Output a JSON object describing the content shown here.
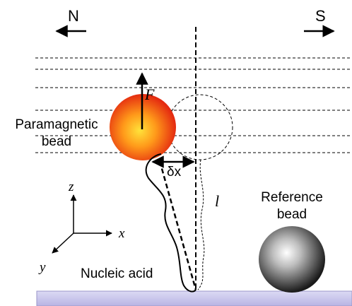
{
  "labels": {
    "north": "N",
    "south": "S",
    "force": "F",
    "paramagnetic_line1": "Paramagnetic",
    "paramagnetic_line2": "bead",
    "delta_x": "δx",
    "length": "l",
    "axis_z": "z",
    "axis_x": "x",
    "axis_y": "y",
    "nucleic_acid": "Nucleic acid",
    "reference_line1": "Reference",
    "reference_line2": "bead"
  },
  "colors": {
    "bead_core": "#ffe23a",
    "bead_mid": "#ff9a1a",
    "bead_edge": "#e42a10",
    "reference_light": "#ffffff",
    "reference_dark": "#1a1a1a",
    "surface_top": "#d8d6f2",
    "surface_bottom": "#b8b4e4",
    "line": "#000000"
  }
}
